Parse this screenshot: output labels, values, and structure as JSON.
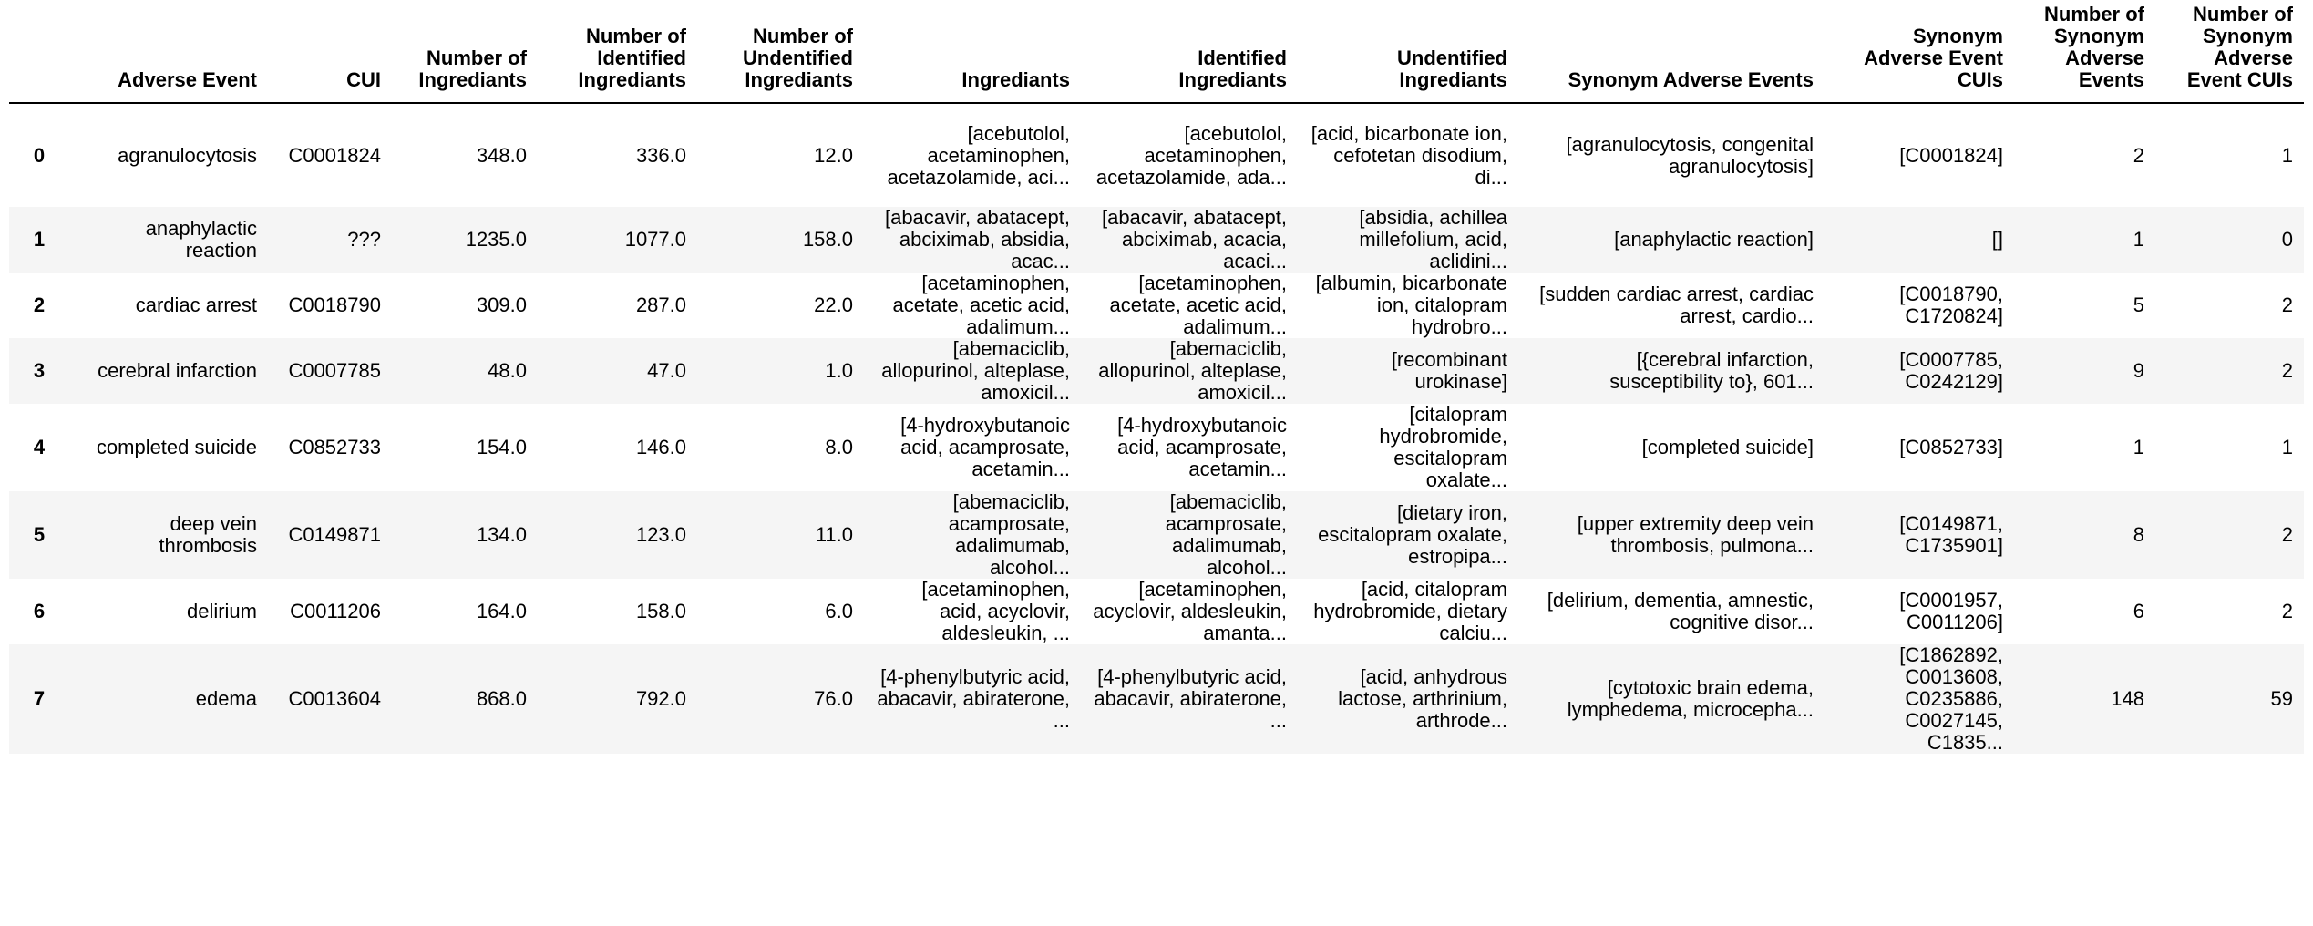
{
  "columns": [
    "",
    "Adverse Event",
    "CUI",
    "Number of Ingrediants",
    "Number of Identified Ingrediants",
    "Number of Undentified Ingrediants",
    "Ingrediants",
    "Identified Ingrediants",
    "Undentified Ingrediants",
    "Synonym Adverse Events",
    "Synonym Adverse Event CUIs",
    "Number of Synonym Adverse Events",
    "Number of Synonym Adverse Event CUIs"
  ],
  "rows": [
    [
      "0",
      "agranulocytosis",
      "C0001824",
      "348.0",
      "336.0",
      "12.0",
      "[acebutolol, acetaminophen, acetazolamide, aci...",
      "[acebutolol, acetaminophen, acetazolamide, ada...",
      "[acid, bicarbonate ion, cefotetan disodium, di...",
      "[agranulocytosis, congenital agranulocytosis]",
      "[C0001824]",
      "2",
      "1"
    ],
    [
      "1",
      "anaphylactic reaction",
      "???",
      "1235.0",
      "1077.0",
      "158.0",
      "[abacavir, abatacept, abciximab, absidia, acac...",
      "[abacavir, abatacept, abciximab, acacia, acaci...",
      "[absidia, achillea millefolium, acid, aclidini...",
      "[anaphylactic reaction]",
      "[]",
      "1",
      "0"
    ],
    [
      "2",
      "cardiac arrest",
      "C0018790",
      "309.0",
      "287.0",
      "22.0",
      "[acetaminophen, acetate, acetic acid, adalimum...",
      "[acetaminophen, acetate, acetic acid, adalimum...",
      "[albumin, bicarbonate ion, citalopram hydrobro...",
      "[sudden cardiac arrest, cardiac arrest, cardio...",
      "[C0018790, C1720824]",
      "5",
      "2"
    ],
    [
      "3",
      "cerebral infarction",
      "C0007785",
      "48.0",
      "47.0",
      "1.0",
      "[abemaciclib, allopurinol, alteplase, amoxicil...",
      "[abemaciclib, allopurinol, alteplase, amoxicil...",
      "[recombinant urokinase]",
      "[{cerebral infarction, susceptibility to}, 601...",
      "[C0007785, C0242129]",
      "9",
      "2"
    ],
    [
      "4",
      "completed suicide",
      "C0852733",
      "154.0",
      "146.0",
      "8.0",
      "[4-hydroxybutanoic acid, acamprosate, acetamin...",
      "[4-hydroxybutanoic acid, acamprosate, acetamin...",
      "[citalopram hydrobromide, escitalopram oxalate...",
      "[completed suicide]",
      "[C0852733]",
      "1",
      "1"
    ],
    [
      "5",
      "deep vein thrombosis",
      "C0149871",
      "134.0",
      "123.0",
      "11.0",
      "[abemaciclib, acamprosate, adalimumab, alcohol...",
      "[abemaciclib, acamprosate, adalimumab, alcohol...",
      "[dietary iron, escitalopram oxalate, estropipa...",
      "[upper extremity deep vein thrombosis, pulmona...",
      "[C0149871, C1735901]",
      "8",
      "2"
    ],
    [
      "6",
      "delirium",
      "C0011206",
      "164.0",
      "158.0",
      "6.0",
      "[acetaminophen, acid, acyclovir, aldesleukin, ...",
      "[acetaminophen, acyclovir, aldesleukin, amanta...",
      "[acid, citalopram hydrobromide, dietary calciu...",
      "[delirium, dementia, amnestic, cognitive disor...",
      "[C0001957, C0011206]",
      "6",
      "2"
    ],
    [
      "7",
      "edema",
      "C0013604",
      "868.0",
      "792.0",
      "76.0",
      "[4-phenylbutyric acid, abacavir, abiraterone, ...",
      "[4-phenylbutyric acid, abacavir, abiraterone, ...",
      "[acid, anhydrous lactose, arthrinium, arthrode...",
      "[cytotoxic brain edema, lymphedema, microcepha...",
      "[C1862892, C0013608, C0235886, C0027145, C1835...",
      "148",
      "59"
    ]
  ]
}
